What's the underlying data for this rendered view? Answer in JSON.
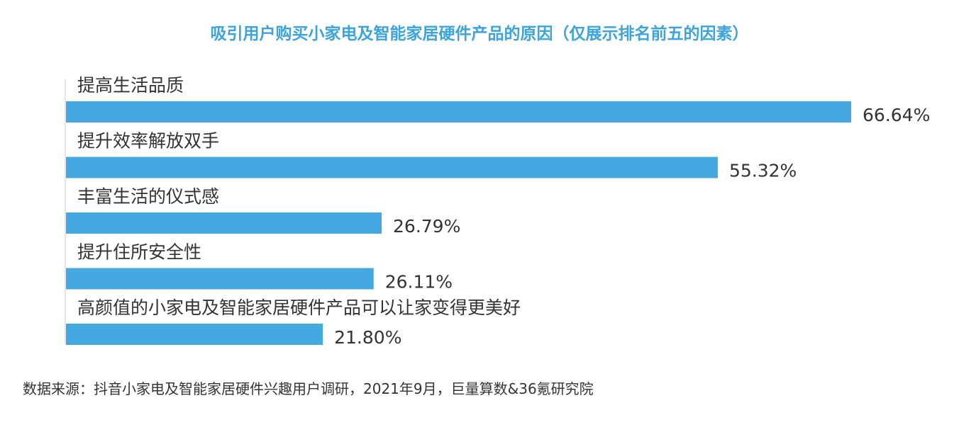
{
  "colors": {
    "title": "#3ba3dd",
    "bar": "#45a8e0",
    "axis": "#cccccc",
    "text": "#333333"
  },
  "chart_data": {
    "type": "bar",
    "orientation": "horizontal",
    "title": "吸引用户购买小家电及智能家居硬件产品的原因（仅展示排名前五的因素）",
    "categories": [
      "提高生活品质",
      "提升效率解放双手",
      "丰富生活的仪式感",
      "提升住所安全性",
      "高颜值的小家电及智能家居硬件产品可以让家变得更美好"
    ],
    "values": [
      66.64,
      55.32,
      26.79,
      26.11,
      21.8
    ],
    "value_labels": [
      "66.64%",
      "55.32%",
      "26.79%",
      "26.11%",
      "21.80%"
    ],
    "unit": "%",
    "xlim": [
      0,
      66.64
    ],
    "grid": false,
    "legend": "none"
  },
  "source": "数据来源：抖音小家电及智能家居硬件兴趣用户调研，2021年9月，巨量算数&36氪研究院"
}
